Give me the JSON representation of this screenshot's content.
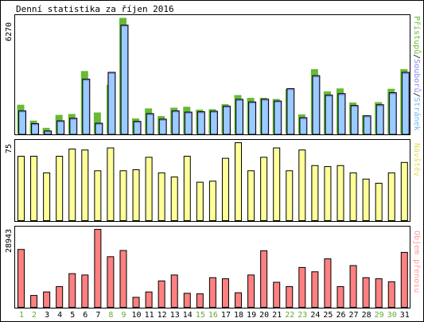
{
  "chart_data": [
    {
      "type": "bar",
      "panel": "access",
      "title": "Denní statistika za říjen 2016",
      "ymax_label": "6270",
      "ylim": [
        0,
        6270
      ],
      "legend": [
        {
          "text": "Přístupů",
          "color": "#66bb33"
        },
        {
          "text": "/",
          "color": "#000000"
        },
        {
          "text": "Souborů",
          "color": "#8888ee"
        },
        {
          "text": "/",
          "color": "#000000"
        },
        {
          "text": "Stránek",
          "color": "#6ab9e6"
        }
      ],
      "categories": [
        "1",
        "2",
        "3",
        "4",
        "5",
        "6",
        "7",
        "8",
        "9",
        "10",
        "11",
        "12",
        "13",
        "14",
        "15",
        "16",
        "17",
        "18",
        "19",
        "20",
        "21",
        "22",
        "23",
        "24",
        "25",
        "26",
        "27",
        "28",
        "29",
        "30",
        "31"
      ],
      "series": [
        {
          "name": "Přístupů",
          "color": "#66bb33",
          "values": [
            1580,
            720,
            330,
            1030,
            1080,
            3400,
            1160,
            2660,
            6270,
            840,
            1380,
            970,
            1420,
            1470,
            1320,
            1340,
            1610,
            2100,
            1950,
            1950,
            1890,
            2430,
            1060,
            3500,
            2300,
            2460,
            1700,
            1020,
            1720,
            2440,
            3500
          ]
        },
        {
          "name": "Souborů",
          "color": "#8888ee",
          "values": [
            1250,
            560,
            160,
            710,
            850,
            2960,
            580,
            3330,
            5880,
            680,
            1100,
            800,
            1250,
            1180,
            1200,
            1230,
            1500,
            1870,
            1730,
            1880,
            1780,
            2450,
            880,
            3150,
            2100,
            2180,
            1540,
            980,
            1580,
            2230,
            3330
          ]
        },
        {
          "name": "Stránek",
          "color": "#99ccff",
          "values": [
            1250,
            560,
            160,
            710,
            850,
            2960,
            580,
            3330,
            5880,
            680,
            1100,
            800,
            1250,
            1180,
            1200,
            1230,
            1500,
            1870,
            1730,
            1880,
            1780,
            2450,
            880,
            3150,
            2100,
            2180,
            1540,
            980,
            1580,
            2230,
            3330
          ]
        }
      ]
    },
    {
      "type": "bar",
      "panel": "visits",
      "ymax_label": "75",
      "ylim": [
        0,
        75
      ],
      "legend": [
        {
          "text": "Návštěv",
          "color": "#dddd55"
        }
      ],
      "categories": [
        "1",
        "2",
        "3",
        "4",
        "5",
        "6",
        "7",
        "8",
        "9",
        "10",
        "11",
        "12",
        "13",
        "14",
        "15",
        "16",
        "17",
        "18",
        "19",
        "20",
        "21",
        "22",
        "23",
        "24",
        "25",
        "26",
        "27",
        "28",
        "29",
        "30",
        "31"
      ],
      "series": [
        {
          "name": "Návštěv",
          "color": "#ffff99",
          "values": [
            62,
            62,
            46,
            62,
            69,
            68,
            48,
            70,
            48,
            49,
            61,
            46,
            42,
            62,
            37,
            38,
            60,
            75,
            48,
            61,
            70,
            48,
            68,
            53,
            52,
            53,
            46,
            40,
            36,
            46,
            56
          ]
        }
      ]
    },
    {
      "type": "bar",
      "panel": "volume",
      "ymax_label": "28943",
      "ylim": [
        0,
        28943
      ],
      "legend": [
        {
          "text": "Objem přenosu",
          "color": "#ff9999"
        }
      ],
      "categories": [
        "1",
        "2",
        "3",
        "4",
        "5",
        "6",
        "7",
        "8",
        "9",
        "10",
        "11",
        "12",
        "13",
        "14",
        "15",
        "16",
        "17",
        "18",
        "19",
        "20",
        "21",
        "22",
        "23",
        "24",
        "25",
        "26",
        "27",
        "28",
        "29",
        "30",
        "31"
      ],
      "series": [
        {
          "name": "Objem přenosu",
          "color": "#ff8080",
          "values": [
            21500,
            4400,
            5700,
            7700,
            12500,
            12000,
            28943,
            18800,
            21100,
            3700,
            5700,
            9800,
            12000,
            5200,
            5000,
            11000,
            10600,
            5400,
            12000,
            21000,
            9300,
            7700,
            14800,
            13200,
            18000,
            7700,
            15500,
            11000,
            10600,
            9500,
            20400
          ]
        }
      ]
    }
  ],
  "x_labels": [
    {
      "text": "1",
      "weekend": true
    },
    {
      "text": "2",
      "weekend": true
    },
    {
      "text": "3",
      "weekend": false
    },
    {
      "text": "4",
      "weekend": false
    },
    {
      "text": "5",
      "weekend": false
    },
    {
      "text": "6",
      "weekend": false
    },
    {
      "text": "7",
      "weekend": false
    },
    {
      "text": "8",
      "weekend": true
    },
    {
      "text": "9",
      "weekend": true
    },
    {
      "text": "10",
      "weekend": false
    },
    {
      "text": "11",
      "weekend": false
    },
    {
      "text": "12",
      "weekend": false
    },
    {
      "text": "13",
      "weekend": false
    },
    {
      "text": "14",
      "weekend": false
    },
    {
      "text": "15",
      "weekend": true
    },
    {
      "text": "16",
      "weekend": true
    },
    {
      "text": "17",
      "weekend": false
    },
    {
      "text": "18",
      "weekend": false
    },
    {
      "text": "19",
      "weekend": false
    },
    {
      "text": "20",
      "weekend": false
    },
    {
      "text": "21",
      "weekend": false
    },
    {
      "text": "22",
      "weekend": true
    },
    {
      "text": "23",
      "weekend": true
    },
    {
      "text": "24",
      "weekend": false
    },
    {
      "text": "25",
      "weekend": false
    },
    {
      "text": "26",
      "weekend": false
    },
    {
      "text": "27",
      "weekend": false
    },
    {
      "text": "28",
      "weekend": false
    },
    {
      "text": "29",
      "weekend": true
    },
    {
      "text": "30",
      "weekend": true
    },
    {
      "text": "31",
      "weekend": false
    }
  ],
  "colors": {
    "weekday_label": "#000000",
    "weekend_label": "#66aa33",
    "frame": "#000000",
    "background": "#ffffff"
  }
}
